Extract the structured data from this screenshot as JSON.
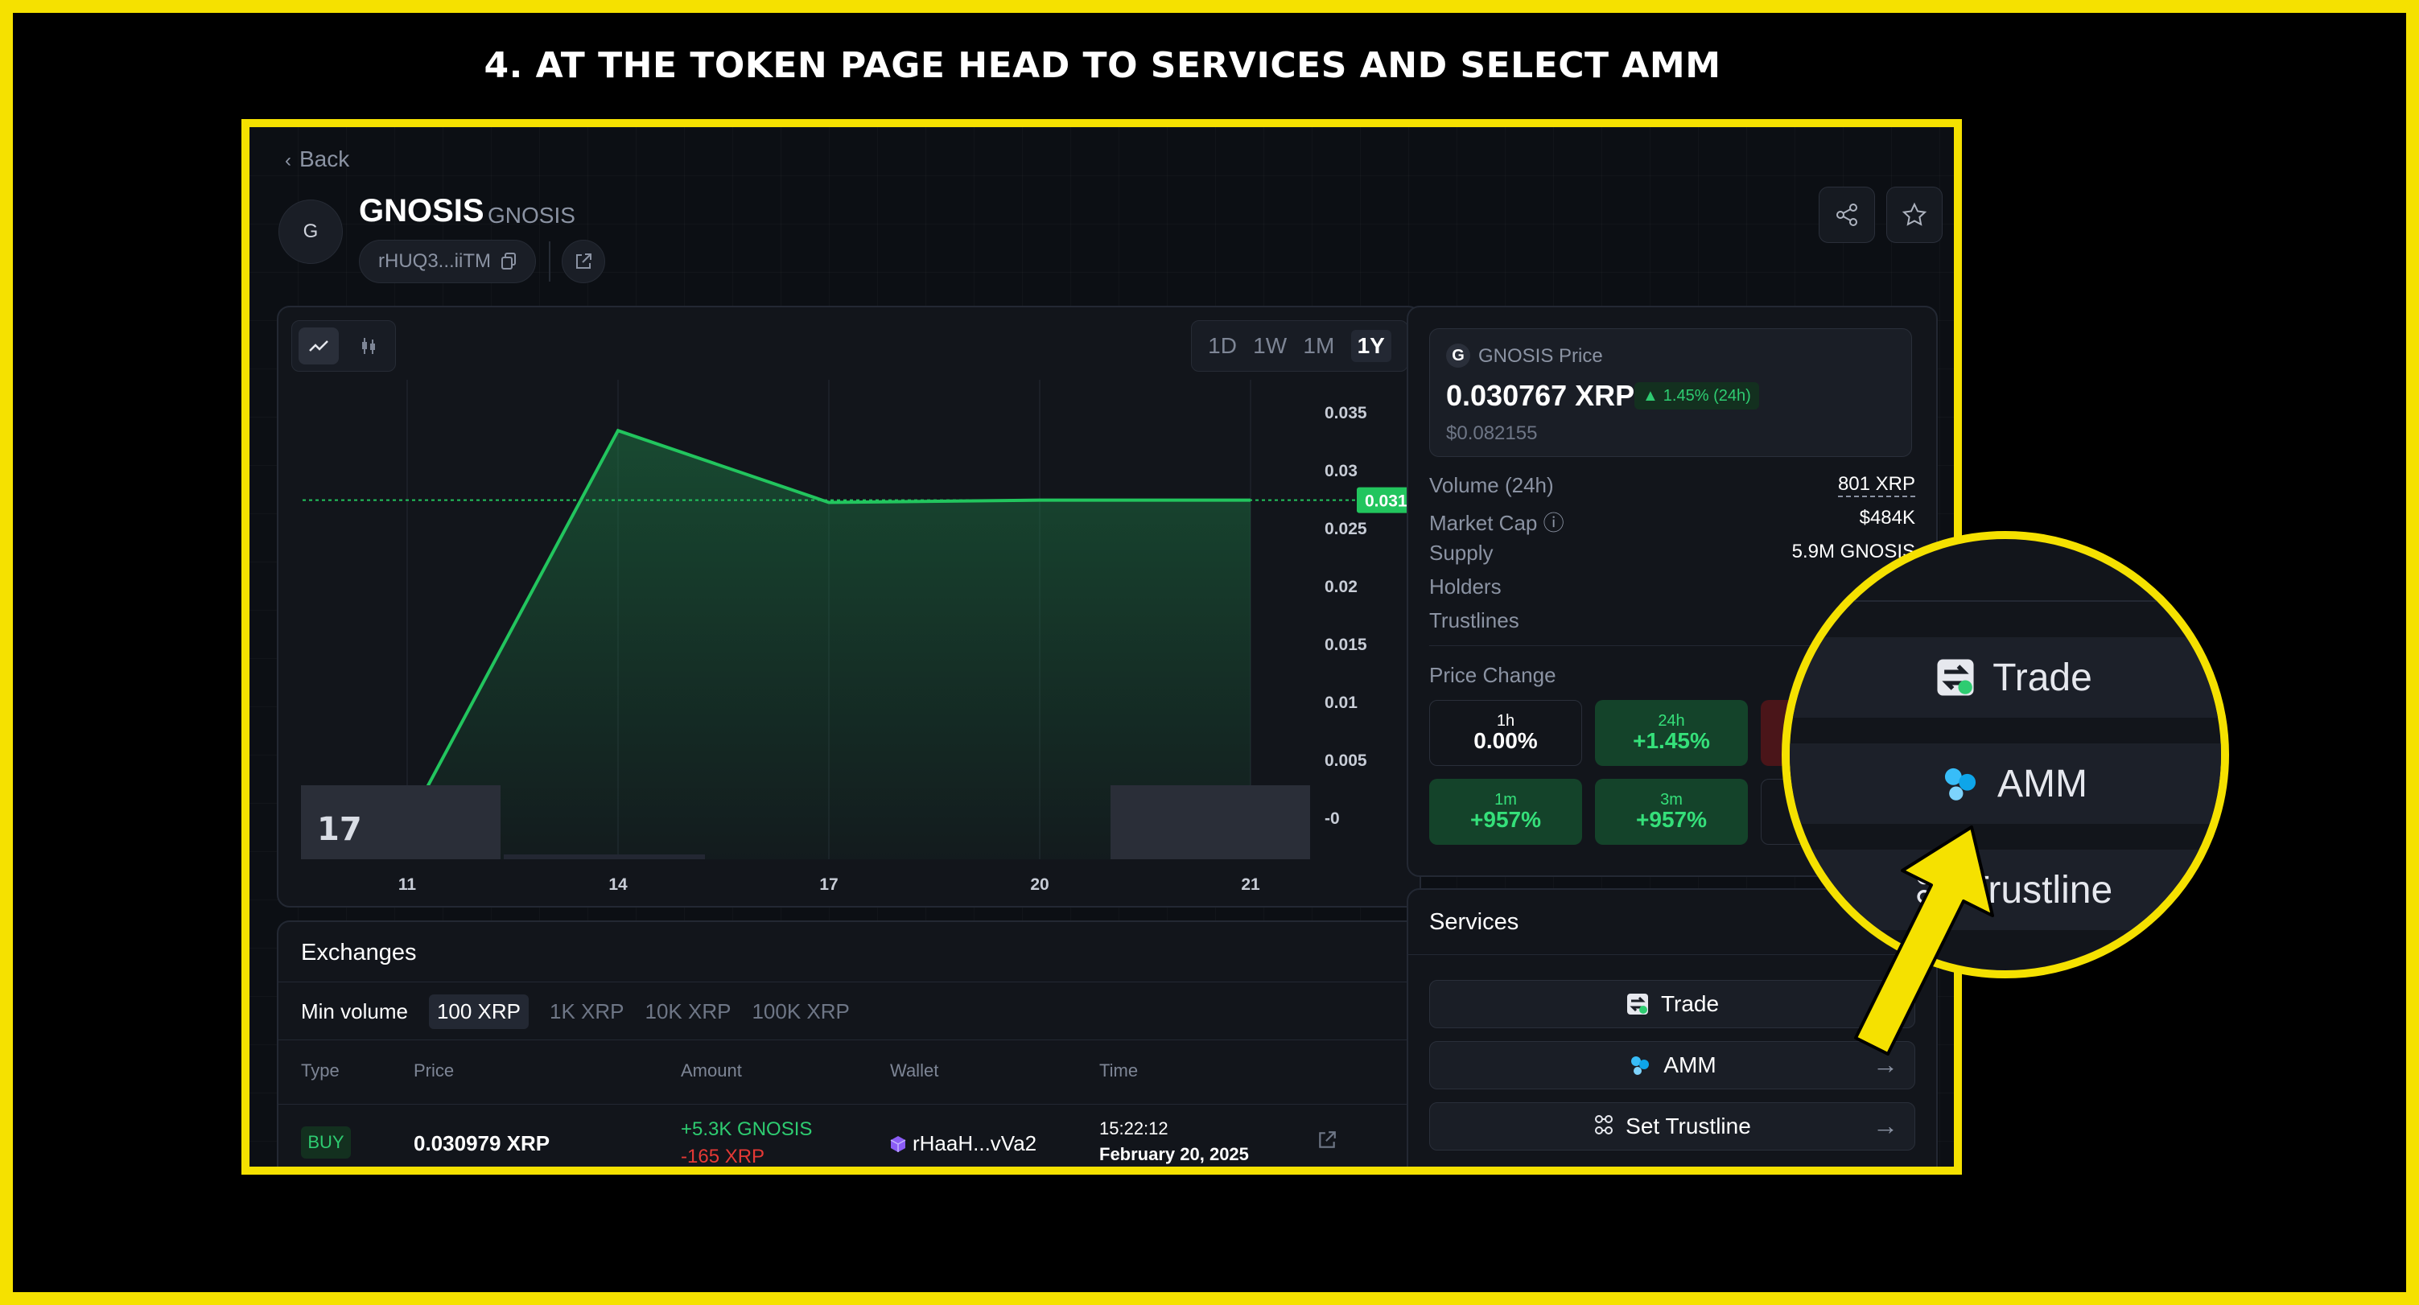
{
  "heading": "4. AT THE TOKEN PAGE HEAD TO SERVICES AND SELECT AMM",
  "colors": {
    "accent_yellow": "#f5e100",
    "green": "#2ecc71",
    "red": "#e53935",
    "bg": "#0c0f14"
  },
  "page": {
    "back_label": "Back",
    "token": {
      "avatar_letter": "G",
      "name": "GNOSIS",
      "symbol": "GNOSIS",
      "address": "rHUQ3...iiTM"
    }
  },
  "chart": {
    "ranges": [
      "1D",
      "1W",
      "1M",
      "1Y"
    ],
    "active_range": "1Y",
    "current_price_label": "0.031",
    "logo_text": "17"
  },
  "chart_data": {
    "type": "area",
    "x": [
      "11",
      "14",
      "17",
      "20",
      "21"
    ],
    "y": [
      0.003,
      0.037,
      0.0308,
      0.031,
      0.031
    ],
    "yticks": [
      "0.035",
      "0.03",
      "0.025",
      "0.02",
      "0.015",
      "0.01",
      "0.005",
      "-0"
    ],
    "ylim": [
      0,
      0.04
    ],
    "current_value": 0.031,
    "grid": true
  },
  "price_card": {
    "label": "GNOSIS Price",
    "price": "0.030767 XRP",
    "change": "1.45% (24h)",
    "usd": "$0.082155"
  },
  "stats": [
    {
      "label": "Volume (24h)",
      "value": "801 XRP"
    },
    {
      "label": "Market Cap ⓘ",
      "value": "$484K"
    },
    {
      "label": "Supply",
      "value": "5.9M GNOSIS"
    },
    {
      "label": "Holders",
      "value": ""
    },
    {
      "label": "Trustlines",
      "value": ""
    }
  ],
  "price_change": {
    "label": "Price Change",
    "boxes": [
      {
        "period": "1h",
        "value": "0.00%"
      },
      {
        "period": "24h",
        "value": "+1.45%"
      },
      {
        "period": "1m",
        "value": "+957%"
      },
      {
        "period": "3m",
        "value": "+957%"
      }
    ]
  },
  "exchanges": {
    "title": "Exchanges",
    "min_volume_label": "Min volume",
    "volume_options": [
      "100 XRP",
      "1K XRP",
      "10K XRP",
      "100K XRP"
    ],
    "columns": [
      "Type",
      "Price",
      "Amount",
      "Wallet",
      "Time"
    ],
    "row": {
      "type": "BUY",
      "price": "0.030979 XRP",
      "amount_in": "+5.3K GNOSIS",
      "amount_out": "-165 XRP",
      "wallet": "rHaaH...vVa2",
      "time": "15:22:12",
      "date": "February 20, 2025"
    }
  },
  "services": {
    "title": "Services",
    "items": [
      {
        "label": "Trade",
        "icon": "trade-icon"
      },
      {
        "label": "AMM",
        "icon": "amm-icon"
      },
      {
        "label": "Set Trustline",
        "icon": "trustline-icon"
      }
    ]
  },
  "zoom": {
    "items": [
      "Trade",
      "AMM",
      "Trustline"
    ]
  }
}
